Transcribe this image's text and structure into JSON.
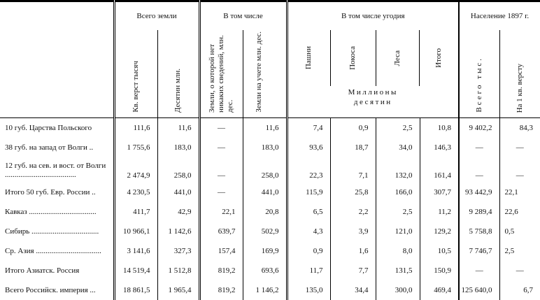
{
  "header": {
    "group_total": "Всего земли",
    "group_incl": "В том числе",
    "group_lands": "В том числе угодия",
    "group_pop": "Население 1897 г.",
    "cols": [
      "Кв. верст тысяч",
      "Десятин млн.",
      "Земли, о которой нет никаких сведений, млн. дес.",
      "Земли на учете млн. дес.",
      "Пашни",
      "Покоса",
      "Леса",
      "Итого",
      "Всего тыс.",
      "На 1 кв. версту"
    ],
    "units": "Миллионы десятин"
  },
  "rows": [
    {
      "label": "10 губ. Царства Польского",
      "values": [
        "111,6",
        "11,6",
        "—",
        "11,6",
        "7,4",
        "0,9",
        "2,5",
        "10,8",
        "9 402,2",
        "84,3"
      ]
    },
    {
      "label": "38 губ. на запад от Волги ..",
      "values": [
        "1 755,6",
        "183,0",
        "—",
        "183,0",
        "93,6",
        "18,7",
        "34,0",
        "146,3",
        "—",
        "—"
      ]
    },
    {
      "label": "12 губ. на сев. и вост. от Волги .....................................",
      "values": [
        "2 474,9",
        "258,0",
        "—",
        "258,0",
        "22,3",
        "7,1",
        "132,0",
        "161,4",
        "—",
        "—"
      ]
    },
    {
      "label": "Итого 50 губ. Евр. России ..",
      "values": [
        "4 230,5",
        "441,0",
        "—",
        "441,0",
        "115,9",
        "25,8",
        "166,0",
        "307,7",
        "93 442,9",
        "22,1"
      ]
    },
    {
      "label": "Кавказ ...................................",
      "values": [
        "411,7",
        "42,9",
        "22,1",
        "20,8",
        "6,5",
        "2,2",
        "2,5",
        "11,2",
        "9 289,4",
        "22,6"
      ]
    },
    {
      "label": "Сибирь ...................................",
      "values": [
        "10 966,1",
        "1 142,6",
        "639,7",
        "502,9",
        "4,3",
        "3,9",
        "121,0",
        "129,2",
        "5 758,8",
        "0,5"
      ]
    },
    {
      "label": "Ср. Азия ..................................",
      "values": [
        "3 141,6",
        "327,3",
        "157,4",
        "169,9",
        "0,9",
        "1,6",
        "8,0",
        "10,5",
        "7 746,7",
        "2,5"
      ]
    },
    {
      "label": "Итого Азиатск. Россия",
      "values": [
        "14 519,4",
        "1 512,8",
        "819,2",
        "693,6",
        "11,7",
        "7,7",
        "131,5",
        "150,9",
        "—",
        "—"
      ]
    },
    {
      "label": "Всего Российск. империя ...",
      "values": [
        "18 861,5",
        "1 965,4",
        "819,2",
        "1 146,2",
        "135,0",
        "34,4",
        "300,0",
        "469,4",
        "125 640,0",
        "6,7"
      ]
    }
  ]
}
